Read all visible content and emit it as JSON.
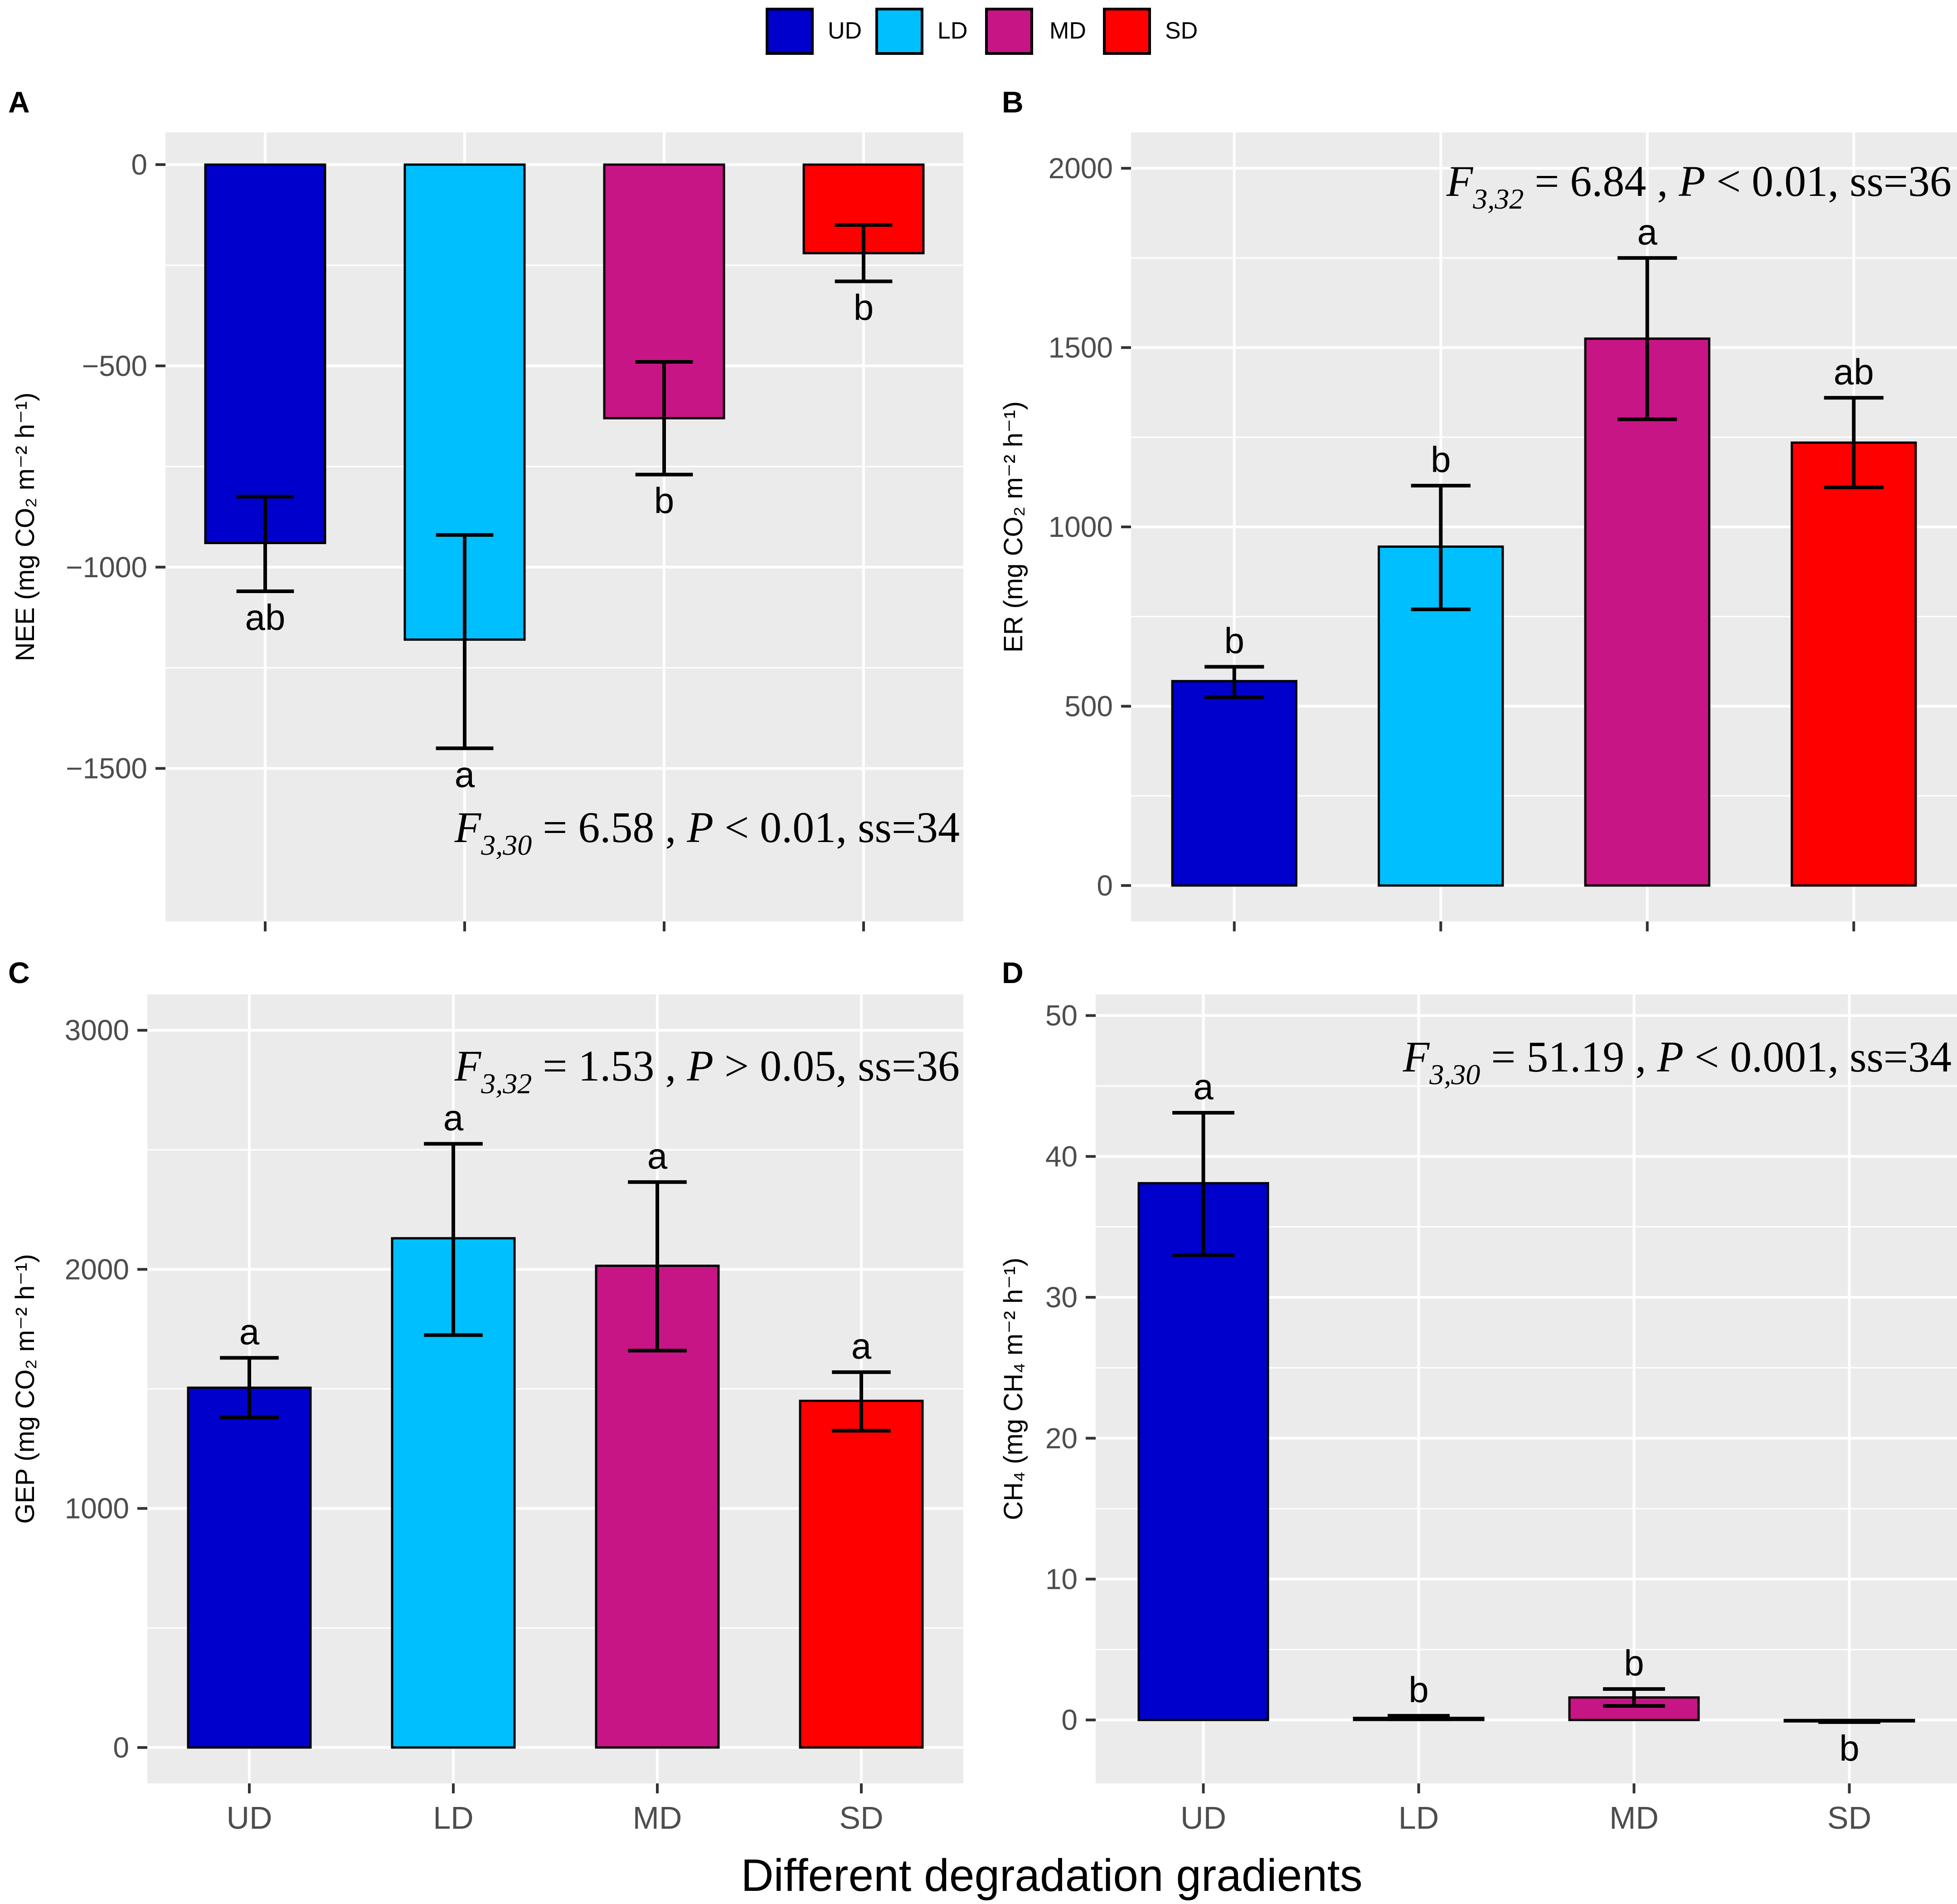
{
  "figure": {
    "x_title": "Different degradation gradients",
    "colors": {
      "UD": "#0000CD",
      "LD": "#00BFFF",
      "MD": "#C71585",
      "SD": "#FF0000",
      "panel_bg": "#EBEBEB",
      "grid": "#FFFFFF",
      "axis_text": "#4D4D4D"
    }
  },
  "legend": {
    "items": [
      {
        "key": "UD",
        "label": "UD"
      },
      {
        "key": "LD",
        "label": "LD"
      },
      {
        "key": "MD",
        "label": "MD"
      },
      {
        "key": "SD",
        "label": "SD"
      }
    ]
  },
  "chart_data": [
    {
      "panel": "A",
      "type": "bar",
      "ylabel": "NEE (mg CO₂ m⁻² h⁻¹)",
      "categories": [
        "UD",
        "LD",
        "MD",
        "SD"
      ],
      "values": [
        -940,
        -1180,
        -630,
        -220
      ],
      "error_low": [
        -1060,
        -1450,
        -770,
        -290
      ],
      "error_high": [
        -825,
        -920,
        -490,
        -150
      ],
      "letters": [
        "ab",
        "a",
        "b",
        "b"
      ],
      "ylim": [
        -1880,
        80
      ],
      "ticks": [
        0,
        -500,
        -1000,
        -1500
      ],
      "tick_labels": [
        "0",
        "−500",
        "−1000",
        "−1500"
      ],
      "show_x_labels": false,
      "stat": {
        "F": "F",
        "df": "3,30",
        "rest_a": " = 6.58 , ",
        "P": "P",
        "rest_b": " < 0.01, ss=34"
      }
    },
    {
      "panel": "B",
      "type": "bar",
      "ylabel": "ER (mg CO₂ m⁻² h⁻¹)",
      "categories": [
        "UD",
        "LD",
        "MD",
        "SD"
      ],
      "values": [
        570,
        945,
        1525,
        1235
      ],
      "error_low": [
        525,
        770,
        1300,
        1110
      ],
      "error_high": [
        610,
        1115,
        1750,
        1360
      ],
      "letters": [
        "b",
        "b",
        "a",
        "ab"
      ],
      "ylim": [
        -100,
        2100
      ],
      "ticks": [
        0,
        500,
        1000,
        1500,
        2000
      ],
      "tick_labels": [
        "0",
        "500",
        "1000",
        "1500",
        "2000"
      ],
      "show_x_labels": false,
      "stat": {
        "F": "F",
        "df": "3,32",
        "rest_a": " = 6.84 , ",
        "P": "P",
        "rest_b": " < 0.01, ss=36"
      }
    },
    {
      "panel": "C",
      "type": "bar",
      "ylabel": "GEP (mg CO₂ m⁻² h⁻¹)",
      "categories": [
        "UD",
        "LD",
        "MD",
        "SD"
      ],
      "values": [
        1505,
        2130,
        2015,
        1450
      ],
      "error_low": [
        1380,
        1725,
        1660,
        1325
      ],
      "error_high": [
        1630,
        2525,
        2365,
        1570
      ],
      "letters": [
        "a",
        "a",
        "a",
        "a"
      ],
      "ylim": [
        -150,
        3150
      ],
      "ticks": [
        0,
        1000,
        2000,
        3000
      ],
      "tick_labels": [
        "0",
        "1000",
        "2000",
        "3000"
      ],
      "show_x_labels": true,
      "stat": {
        "F": "F",
        "df": "3,32",
        "rest_a": " = 1.53 , ",
        "P": "P",
        "rest_b": " > 0.05, ss=36"
      }
    },
    {
      "panel": "D",
      "type": "bar",
      "ylabel": "CH₄ (mg CH₄ m⁻² h⁻¹)",
      "categories": [
        "UD",
        "LD",
        "MD",
        "SD"
      ],
      "values": [
        38.1,
        0.15,
        1.6,
        -0.1
      ],
      "error_low": [
        33.0,
        0.05,
        1.0,
        -0.15
      ],
      "error_high": [
        43.1,
        0.3,
        2.2,
        -0.05
      ],
      "letters": [
        "a",
        "b",
        "b",
        "b"
      ],
      "ylim": [
        -4.5,
        51.5
      ],
      "ticks": [
        0,
        10,
        20,
        30,
        40,
        50
      ],
      "tick_labels": [
        "0",
        "10",
        "20",
        "30",
        "40",
        "50"
      ],
      "show_x_labels": true,
      "stat": {
        "F": "F",
        "df": "3,30",
        "rest_a": " = 51.19 , ",
        "P": "P",
        "rest_b": " < 0.001, ss=34"
      }
    }
  ]
}
